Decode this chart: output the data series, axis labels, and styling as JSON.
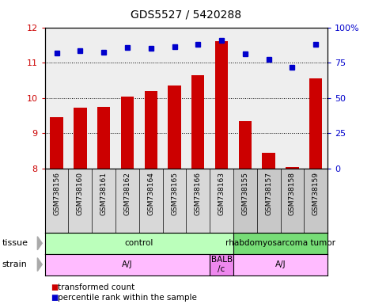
{
  "title": "GDS5527 / 5420288",
  "samples": [
    "GSM738156",
    "GSM738160",
    "GSM738161",
    "GSM738162",
    "GSM738164",
    "GSM738165",
    "GSM738166",
    "GSM738163",
    "GSM738155",
    "GSM738157",
    "GSM738158",
    "GSM738159"
  ],
  "bar_values": [
    9.45,
    9.72,
    9.75,
    10.05,
    10.2,
    10.35,
    10.65,
    11.6,
    9.35,
    8.45,
    8.05,
    10.55
  ],
  "dot_values": [
    11.27,
    11.33,
    11.29,
    11.42,
    11.41,
    11.46,
    11.52,
    11.63,
    11.25,
    11.1,
    10.88,
    11.52
  ],
  "bar_color": "#cc0000",
  "dot_color": "#0000cc",
  "ylim_left": [
    8,
    12
  ],
  "ylim_right": [
    0,
    100
  ],
  "yticks_left": [
    8,
    9,
    10,
    11,
    12
  ],
  "yticks_right": [
    0,
    25,
    50,
    75,
    100
  ],
  "right_tick_labels": [
    "0",
    "25",
    "50",
    "75",
    "100%"
  ],
  "tissue_labels": [
    {
      "label": "control",
      "start": 0,
      "end": 8,
      "color": "#bbffbb"
    },
    {
      "label": "rhabdomyosarcoma tumor",
      "start": 8,
      "end": 12,
      "color": "#77dd77"
    }
  ],
  "strain_labels": [
    {
      "label": "A/J",
      "start": 0,
      "end": 7,
      "color": "#ffbbff"
    },
    {
      "label": "BALB\n/c",
      "start": 7,
      "end": 8,
      "color": "#ee88ee"
    },
    {
      "label": "A/J",
      "start": 8,
      "end": 12,
      "color": "#ffbbff"
    }
  ],
  "sample_bg_colors": [
    "#d8d8d8",
    "#d8d8d8",
    "#d8d8d8",
    "#d8d8d8",
    "#d8d8d8",
    "#d8d8d8",
    "#d8d8d8",
    "#d8d8d8",
    "#c8c8c8",
    "#c8c8c8",
    "#c8c8c8",
    "#c8c8c8"
  ],
  "legend_bar_label": "transformed count",
  "legend_dot_label": "percentile rank within the sample",
  "tissue_row_label": "tissue",
  "strain_row_label": "strain",
  "background_color": "#ffffff",
  "plot_bg_color": "#eeeeee",
  "bar_width": 0.55
}
